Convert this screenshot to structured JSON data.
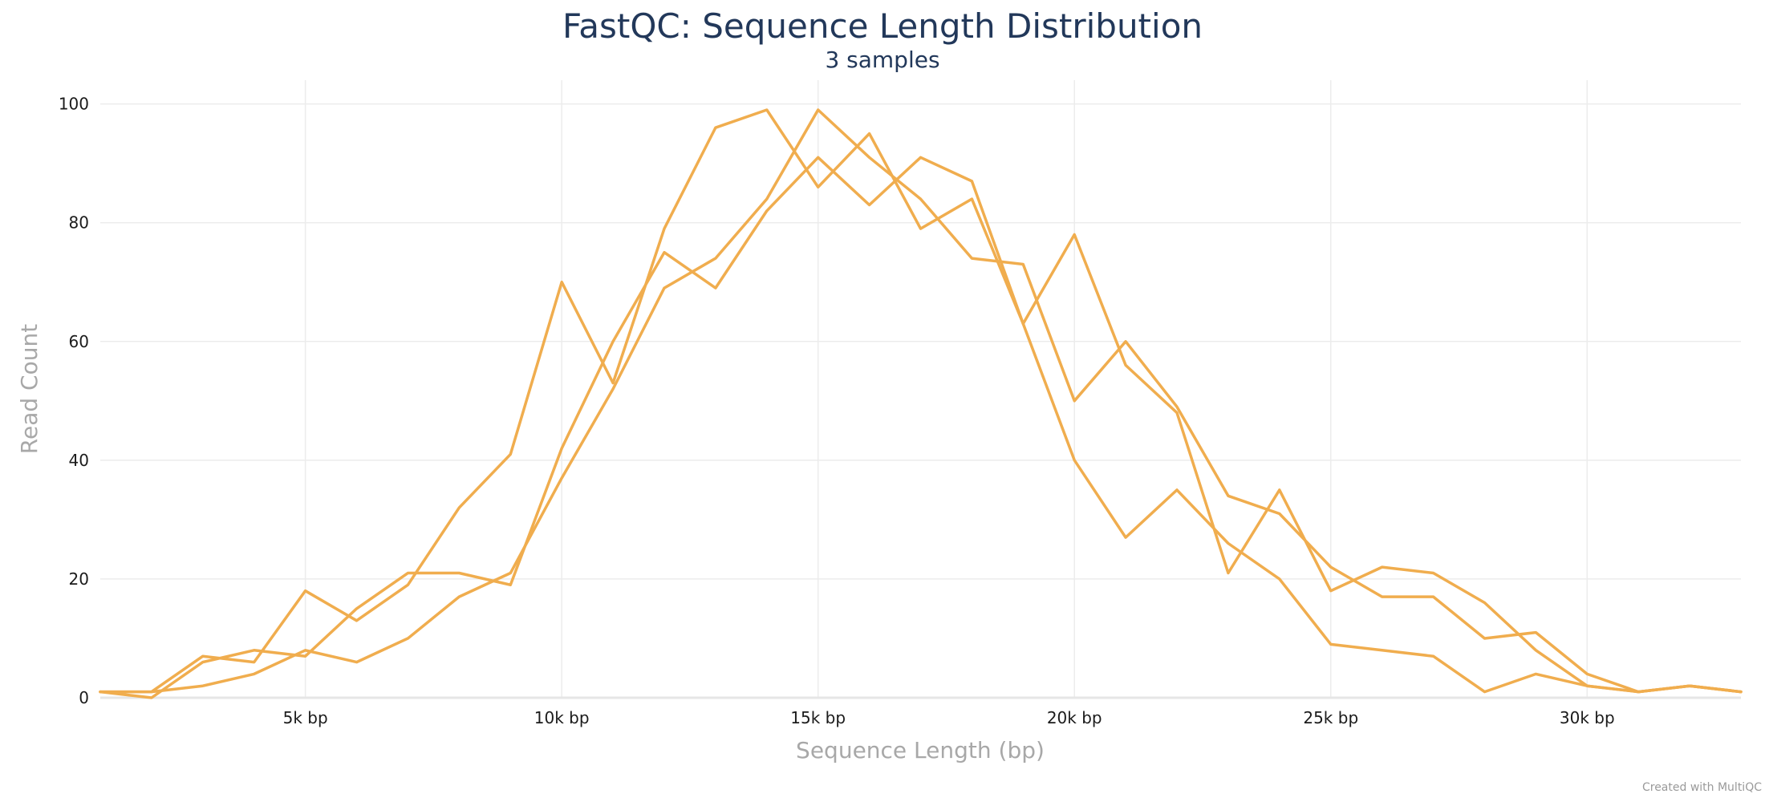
{
  "credit": "Created with MultiQC",
  "chart_data": {
    "type": "line",
    "title": "FastQC: Sequence Length Distribution",
    "subtitle": "3 samples",
    "xlabel": "Sequence Length (bp)",
    "ylabel": "Read Count",
    "xlim": [
      1000,
      33000
    ],
    "ylim": [
      0,
      104
    ],
    "x_ticks": [
      {
        "value": 5000,
        "label": "5k bp"
      },
      {
        "value": 10000,
        "label": "10k bp"
      },
      {
        "value": 15000,
        "label": "15k bp"
      },
      {
        "value": 20000,
        "label": "20k bp"
      },
      {
        "value": 25000,
        "label": "25k bp"
      },
      {
        "value": 30000,
        "label": "30k bp"
      }
    ],
    "y_ticks": [
      0,
      20,
      40,
      60,
      80,
      100
    ],
    "grid": true,
    "line_color": "#f0ad4e",
    "x": [
      1000,
      2000,
      3000,
      4000,
      5000,
      6000,
      7000,
      8000,
      9000,
      10000,
      11000,
      12000,
      13000,
      14000,
      15000,
      16000,
      17000,
      18000,
      19000,
      20000,
      21000,
      22000,
      23000,
      24000,
      25000,
      26000,
      27000,
      28000,
      29000,
      30000,
      31000,
      32000,
      33000
    ],
    "series": [
      {
        "values": [
          1,
          0,
          6,
          8,
          7,
          15,
          21,
          21,
          19,
          42,
          60,
          75,
          69,
          82,
          91,
          83,
          91,
          87,
          63,
          78,
          56,
          48,
          21,
          35,
          18,
          22,
          21,
          16,
          8,
          2,
          1,
          2,
          1
        ]
      },
      {
        "values": [
          1,
          1,
          7,
          6,
          18,
          13,
          19,
          32,
          41,
          70,
          53,
          79,
          96,
          99,
          86,
          95,
          79,
          84,
          63,
          40,
          27,
          35,
          26,
          20,
          9,
          8,
          7,
          1,
          4,
          2,
          1,
          2,
          1
        ]
      },
      {
        "values": [
          1,
          1,
          2,
          4,
          8,
          6,
          10,
          17,
          21,
          37,
          52,
          69,
          74,
          84,
          99,
          91,
          84,
          74,
          73,
          50,
          60,
          49,
          34,
          31,
          22,
          17,
          17,
          10,
          11,
          4,
          1,
          2,
          1
        ]
      }
    ]
  }
}
